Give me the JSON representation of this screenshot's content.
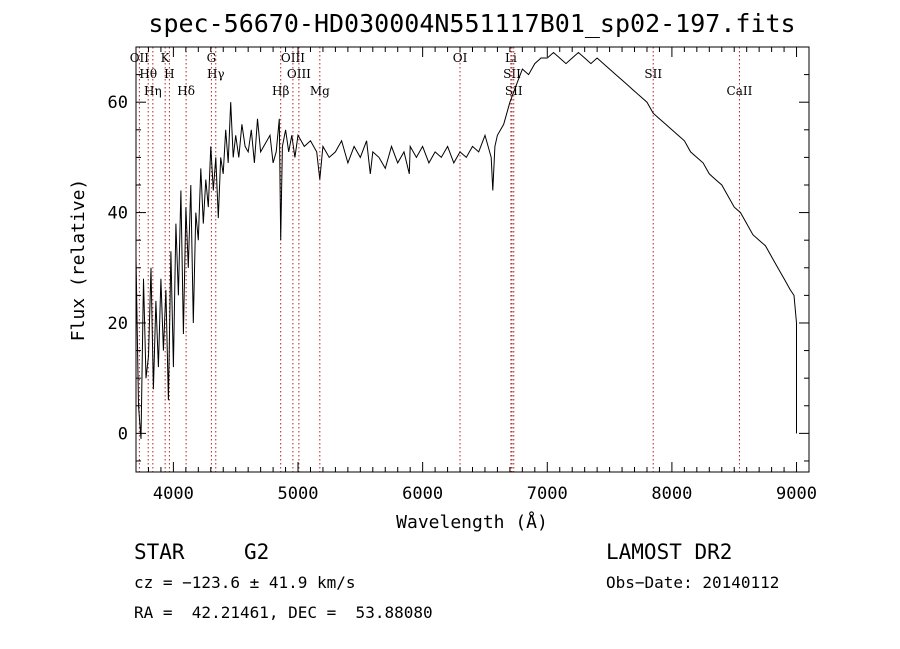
{
  "chart_data": {
    "type": "line",
    "title": "spec-56670-HD030004N551117B01_sp02-197.fits",
    "xlabel": "Wavelength (Å)",
    "ylabel": "Flux (relative)",
    "xlim": [
      3700,
      9100
    ],
    "ylim": [
      -7,
      70
    ],
    "xticks": [
      4000,
      5000,
      6000,
      7000,
      8000,
      9000
    ],
    "yticks": [
      0,
      20,
      40,
      60
    ],
    "series": [
      {
        "x": [
          3700,
          3720,
          3740,
          3760,
          3780,
          3800,
          3820,
          3840,
          3860,
          3880,
          3900,
          3920,
          3940,
          3960,
          3980,
          4000,
          4020,
          4040,
          4060,
          4080,
          4100,
          4120,
          4140,
          4160,
          4180,
          4200,
          4220,
          4240,
          4260,
          4280,
          4300,
          4320,
          4340,
          4360,
          4380,
          4400,
          4420,
          4440,
          4460,
          4480,
          4500,
          4525,
          4550,
          4575,
          4600,
          4625,
          4650,
          4675,
          4700,
          4725,
          4750,
          4775,
          4800,
          4825,
          4850,
          4861,
          4875,
          4900,
          4925,
          4950,
          4975,
          5000,
          5050,
          5100,
          5150,
          5175,
          5200,
          5250,
          5300,
          5350,
          5400,
          5450,
          5500,
          5550,
          5580,
          5600,
          5650,
          5700,
          5750,
          5800,
          5850,
          5893,
          5900,
          5950,
          6000,
          6050,
          6100,
          6150,
          6200,
          6250,
          6300,
          6350,
          6400,
          6450,
          6500,
          6550,
          6563,
          6580,
          6600,
          6650,
          6700,
          6750,
          6800,
          6850,
          6900,
          6950,
          7000,
          7050,
          7100,
          7150,
          7200,
          7250,
          7300,
          7350,
          7400,
          7450,
          7500,
          7550,
          7600,
          7650,
          7700,
          7750,
          7800,
          7850,
          7900,
          7950,
          8000,
          8050,
          8100,
          8150,
          8200,
          8250,
          8300,
          8350,
          8400,
          8450,
          8500,
          8550,
          8600,
          8650,
          8700,
          8750,
          8800,
          8850,
          8900,
          8950,
          8980,
          9000,
          9000
        ],
        "y": [
          32,
          5,
          -1,
          28,
          10,
          14,
          30,
          8,
          24,
          12,
          28,
          15,
          26,
          6,
          33,
          12,
          38,
          25,
          44,
          18,
          41,
          30,
          45,
          20,
          40,
          35,
          48,
          38,
          46,
          41,
          52,
          44,
          50,
          39,
          50,
          47,
          55,
          49,
          60,
          50,
          54,
          50,
          56,
          52,
          51,
          55,
          49,
          57,
          51,
          52,
          53,
          54,
          49,
          51,
          57,
          35,
          52,
          55,
          51,
          54,
          50,
          54,
          52,
          53,
          51,
          46,
          52,
          50,
          51,
          53,
          49,
          52,
          50,
          53,
          47,
          51,
          50,
          48,
          52,
          49,
          51,
          47,
          52,
          50,
          52,
          49,
          51,
          50,
          52,
          49,
          51,
          50,
          52,
          51,
          54,
          50,
          44,
          52,
          54,
          56,
          60,
          63,
          66,
          65,
          67,
          68,
          68,
          69,
          68,
          67,
          68,
          69,
          68,
          67,
          68,
          67,
          66,
          65,
          64,
          63,
          62,
          61,
          60,
          58,
          57,
          56,
          55,
          54,
          53,
          51,
          50,
          49,
          47,
          46,
          45,
          43,
          41,
          40,
          38,
          36,
          35,
          34,
          32,
          30,
          28,
          26,
          25,
          20,
          0
        ],
        "color": "#000000"
      }
    ],
    "line_markers": [
      {
        "label": "OII",
        "x": 3727
      },
      {
        "label": "Hθ",
        "x": 3798
      },
      {
        "label": "Hη",
        "x": 3835
      },
      {
        "label": "K",
        "x": 3934
      },
      {
        "label": "H",
        "x": 3968
      },
      {
        "label": "Hδ",
        "x": 4102
      },
      {
        "label": "G",
        "x": 4305
      },
      {
        "label": "Hγ",
        "x": 4340
      },
      {
        "label": "Hβ",
        "x": 4861
      },
      {
        "label": "OIII",
        "x": 4959
      },
      {
        "label": "OIII",
        "x": 5007
      },
      {
        "label": "Mg",
        "x": 5175
      },
      {
        "label": "OI",
        "x": 6300
      },
      {
        "label": "SII",
        "x": 6717
      },
      {
        "label": "SII",
        "x": 6731
      },
      {
        "label": "Li",
        "x": 6708
      },
      {
        "label": "SII",
        "x": 7850
      },
      {
        "label": "CaII",
        "x": 8542
      }
    ],
    "marker_color": "#b22222",
    "grid": false
  },
  "info": {
    "obj_type": "STAR",
    "subclass": "G2",
    "survey": "LAMOST DR2",
    "cz": "cz = −123.6 ± 41.9 km/s",
    "obs_date": "Obs−Date: 20140112",
    "radec": "RA =  42.21461, DEC =  53.88080"
  }
}
